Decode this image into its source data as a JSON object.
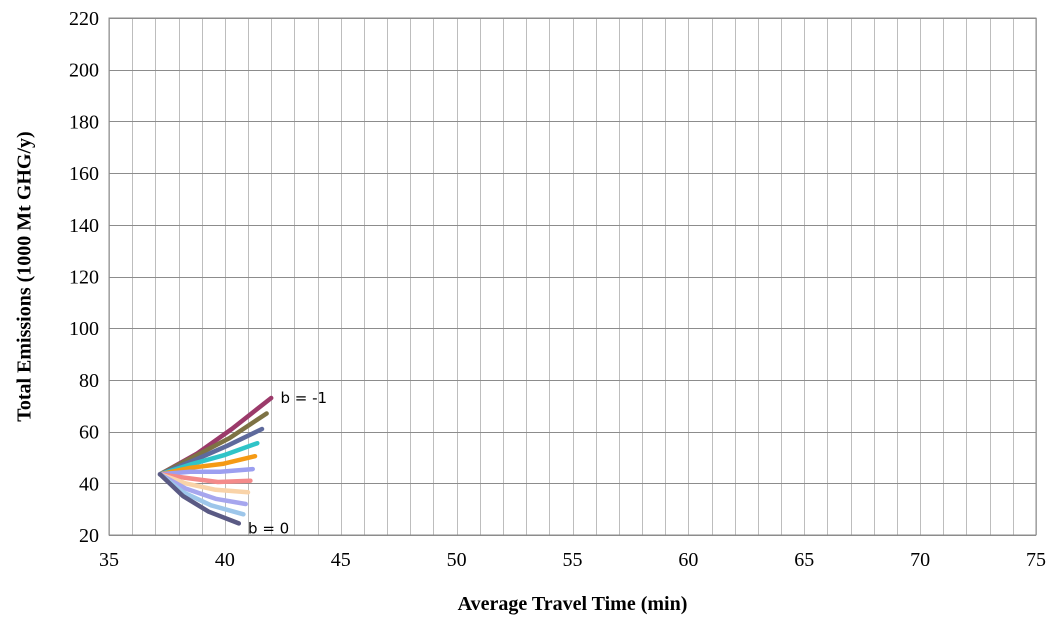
{
  "chart_data": {
    "type": "line",
    "title": "",
    "xlabel": "Average Travel Time (min)",
    "ylabel": "Total Emissions (1000 Mt GHG/y)",
    "xlim": [
      35,
      75
    ],
    "ylim": [
      20,
      220
    ],
    "x_ticks": [
      35,
      40,
      45,
      50,
      55,
      60,
      65,
      70,
      75
    ],
    "y_ticks": [
      20,
      40,
      60,
      80,
      100,
      120,
      140,
      160,
      180,
      200,
      220
    ],
    "x_minor_step": 1,
    "y_major_step": 20,
    "grid": true,
    "legend": "none",
    "annotations": [
      {
        "text": "b = -1",
        "x": 42.4,
        "y": 73
      },
      {
        "text": "b = 0",
        "x": 41.0,
        "y": 22.5
      }
    ],
    "series": [
      {
        "color": "#9b3a6a",
        "points": [
          [
            37.2,
            43.5
          ],
          [
            38.8,
            51.5
          ],
          [
            40.3,
            61
          ],
          [
            42.0,
            73
          ]
        ]
      },
      {
        "color": "#7d7244",
        "points": [
          [
            37.2,
            43.5
          ],
          [
            38.7,
            50.5
          ],
          [
            40.2,
            57.5
          ],
          [
            41.8,
            67
          ]
        ]
      },
      {
        "color": "#5e6a9c",
        "points": [
          [
            37.2,
            43.5
          ],
          [
            38.7,
            49
          ],
          [
            40.1,
            54.5
          ],
          [
            41.6,
            61
          ]
        ]
      },
      {
        "color": "#2fc4c8",
        "points": [
          [
            37.2,
            43.5
          ],
          [
            38.6,
            47.5
          ],
          [
            40.0,
            51
          ],
          [
            41.4,
            55.5
          ]
        ]
      },
      {
        "color": "#f59a14",
        "points": [
          [
            37.2,
            43.5
          ],
          [
            38.5,
            46
          ],
          [
            39.9,
            47.5
          ],
          [
            41.3,
            50.5
          ]
        ]
      },
      {
        "color": "#9c9ff0",
        "points": [
          [
            37.2,
            43.5
          ],
          [
            38.5,
            44.5
          ],
          [
            39.8,
            44.5
          ],
          [
            41.2,
            45.5
          ]
        ]
      },
      {
        "color": "#f48a8a",
        "points": [
          [
            37.2,
            43.5
          ],
          [
            38.4,
            42
          ],
          [
            39.7,
            40.5
          ],
          [
            41.1,
            41
          ]
        ]
      },
      {
        "color": "#f9d3a8",
        "points": [
          [
            37.2,
            43.5
          ],
          [
            38.3,
            40
          ],
          [
            39.6,
            37.5
          ],
          [
            41.0,
            36.5
          ]
        ]
      },
      {
        "color": "#a6a6ee",
        "points": [
          [
            37.2,
            43.5
          ],
          [
            38.3,
            38
          ],
          [
            39.6,
            34
          ],
          [
            40.9,
            32
          ]
        ]
      },
      {
        "color": "#9dc6ea",
        "points": [
          [
            37.2,
            43.5
          ],
          [
            38.2,
            36.5
          ],
          [
            39.4,
            31.5
          ],
          [
            40.8,
            28
          ]
        ]
      },
      {
        "color": "#5a5a84",
        "points": [
          [
            37.2,
            43.5
          ],
          [
            38.2,
            35
          ],
          [
            39.3,
            29
          ],
          [
            40.6,
            24.5
          ]
        ]
      }
    ]
  }
}
